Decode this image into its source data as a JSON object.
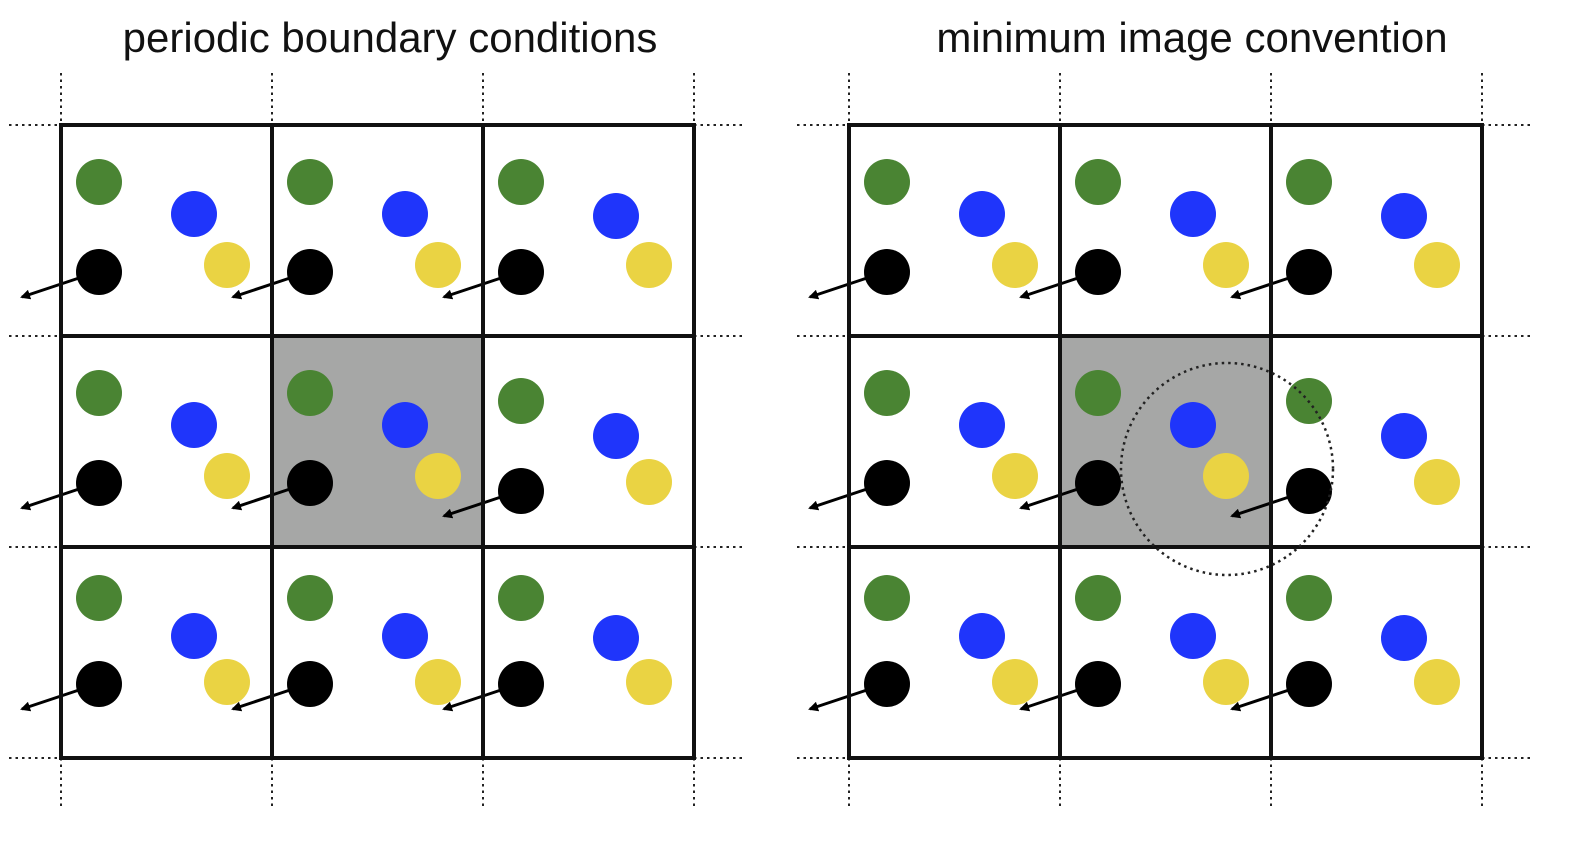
{
  "panels": [
    {
      "title": "periodic boundary conditions",
      "highlight_cell": [
        1,
        1
      ],
      "cutoff_circle": false
    },
    {
      "title": "minimum image convention",
      "highlight_cell": [
        1,
        1
      ],
      "cutoff_circle": true
    }
  ],
  "grid": {
    "rows": 3,
    "cols": 3
  },
  "particles": [
    {
      "name": "green-particle",
      "color": "#4a8433"
    },
    {
      "name": "blue-particle",
      "color": "#1f35fb"
    },
    {
      "name": "yellow-particle",
      "color": "#ead343"
    },
    {
      "name": "black-particle",
      "color": "#000000",
      "velocity_arrow": true
    }
  ],
  "colors": {
    "cell_border": "#111111",
    "highlight_fill": "#a6a7a6",
    "dotted_line": "#222222",
    "arrow": "#000000"
  }
}
